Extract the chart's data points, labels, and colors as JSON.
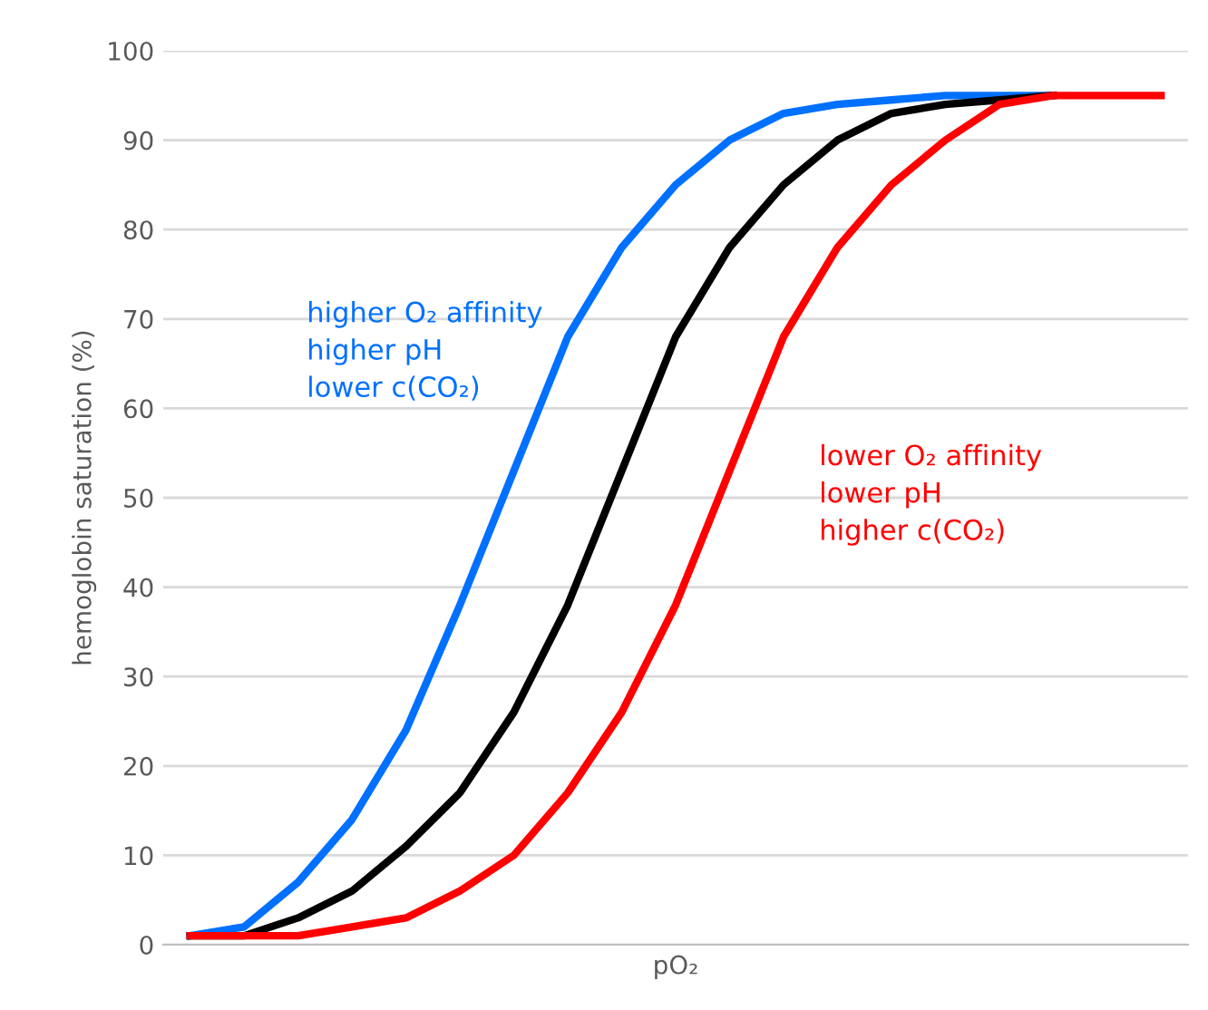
{
  "chart_data": {
    "type": "line",
    "xlabel": "pO₂",
    "ylabel": "hemoglobin saturation (%)",
    "categories": [
      null,
      null,
      null,
      null,
      null,
      null,
      null,
      null,
      null,
      null,
      null,
      null,
      null,
      null,
      null,
      null,
      null,
      null,
      null
    ],
    "series": [
      {
        "name": "higher O₂ affinity\nhigher pH\nlower c(CO₂)",
        "color": "#0070ff",
        "values": [
          1,
          2,
          7,
          14,
          24,
          38,
          53,
          68,
          78,
          85,
          90,
          93,
          94,
          94.5,
          95,
          95,
          95,
          null,
          null
        ]
      },
      {
        "color": "#000000",
        "values": [
          1,
          1,
          3,
          6,
          11,
          17,
          26,
          38,
          53,
          68,
          78,
          85,
          90,
          93,
          94,
          94.5,
          95,
          null,
          null
        ]
      },
      {
        "name": "lower O₂ affinity\nlower pH\nhigher c(CO₂)",
        "color": "#ff0000",
        "values": [
          1,
          1,
          1,
          2,
          3,
          6,
          10,
          17,
          26,
          38,
          53,
          68,
          78,
          85,
          90,
          94,
          95,
          95,
          95
        ]
      }
    ],
    "ylim": [
      0,
      100
    ],
    "yticks": [
      0,
      10,
      20,
      30,
      40,
      50,
      60,
      70,
      80,
      90,
      100
    ],
    "grid": "y",
    "legend": false,
    "tick_labels": "y",
    "line_style": "solid",
    "marker": "none"
  }
}
